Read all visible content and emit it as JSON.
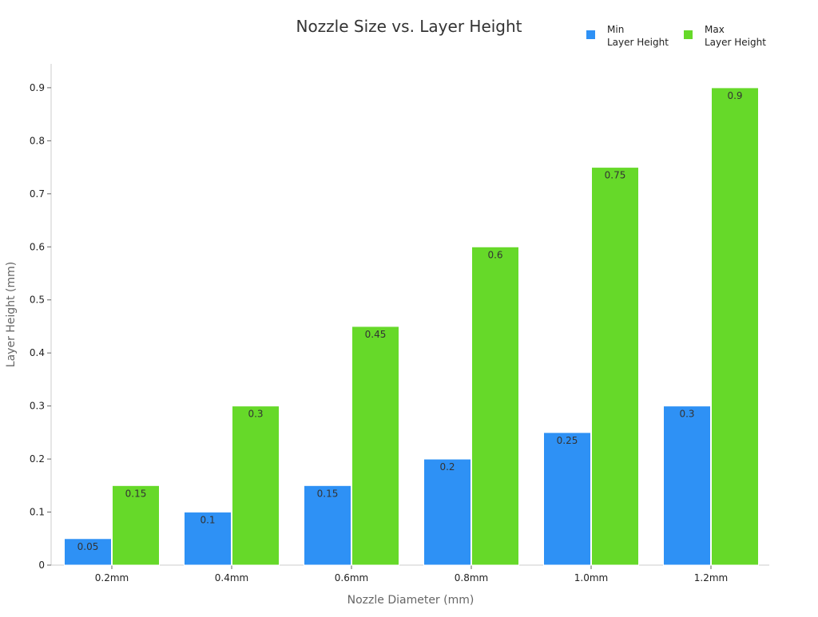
{
  "chart_data": {
    "type": "bar",
    "title": "Nozzle Size vs. Layer Height",
    "xlabel": "Nozzle Diameter (mm)",
    "ylabel": "Layer Height (mm)",
    "categories": [
      "0.2mm",
      "0.4mm",
      "0.6mm",
      "0.8mm",
      "1.0mm",
      "1.2mm"
    ],
    "series": [
      {
        "name": "Min Layer Height",
        "legend_lines": [
          "Min",
          "Layer Height"
        ],
        "color": "#2e91f5",
        "values": [
          0.05,
          0.1,
          0.15,
          0.2,
          0.25,
          0.3
        ]
      },
      {
        "name": "Max Layer Height",
        "legend_lines": [
          "Max",
          "Layer Height"
        ],
        "color": "#66d929",
        "values": [
          0.15,
          0.3,
          0.45,
          0.6,
          0.75,
          0.9
        ]
      }
    ],
    "ylim": [
      0,
      0.945
    ],
    "yticks": [
      0,
      0.1,
      0.2,
      0.3,
      0.4,
      0.5,
      0.6,
      0.7,
      0.8,
      0.9
    ],
    "grid": false,
    "legend_position": "top-right",
    "data_labels": true
  }
}
